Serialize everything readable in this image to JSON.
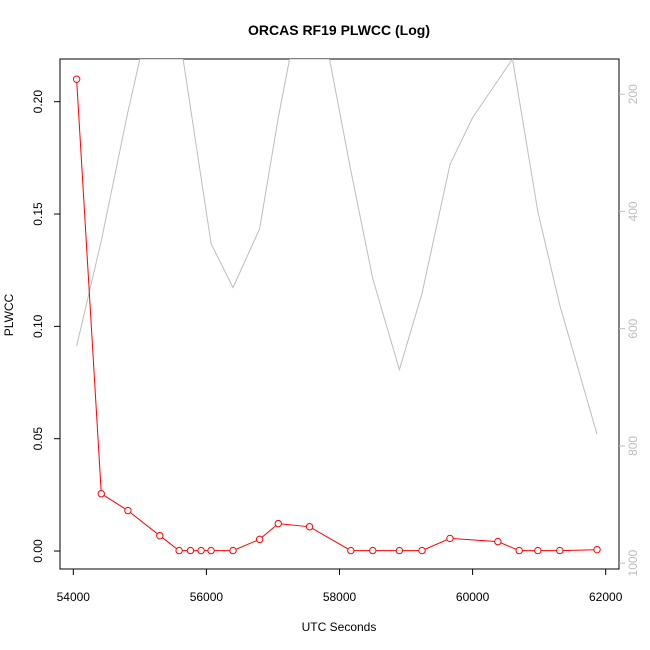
{
  "chart_data": {
    "type": "line",
    "title": "ORCAS RF19 PLWCC (Log)",
    "xlabel": "UTC Seconds",
    "ylabel": "PLWCC",
    "xlim": [
      53800,
      62200
    ],
    "ylim": [
      -0.008,
      0.219
    ],
    "x_ticks": [
      54000,
      56000,
      58000,
      60000,
      62000
    ],
    "y_ticks": [
      0.0,
      0.05,
      0.1,
      0.15,
      0.2
    ],
    "y_tick_labels": [
      "0.00",
      "0.05",
      "0.10",
      "0.15",
      "0.20"
    ],
    "right_axis": {
      "ylim": [
        1010,
        140
      ],
      "reversed": true,
      "ticks": [
        200,
        400,
        600,
        800,
        1000
      ],
      "tick_labels": [
        "200",
        "400",
        "600",
        "800",
        "1000"
      ],
      "color": "#bdbdbd"
    },
    "grid": false,
    "series": [
      {
        "color": "#ff0000",
        "marker": "open-circle",
        "axis": "left",
        "x": [
          54050,
          54420,
          54820,
          55300,
          55590,
          55760,
          55920,
          56070,
          56400,
          56800,
          57080,
          57550,
          58170,
          58500,
          58900,
          59240,
          59660,
          60380,
          60700,
          60980,
          61310,
          61870
        ],
        "y": [
          0.21,
          0.0255,
          0.018,
          0.0068,
          0.0002,
          0.0002,
          0.0002,
          0.0002,
          0.0002,
          0.0052,
          0.0122,
          0.0108,
          0.0002,
          0.0002,
          0.0002,
          0.0002,
          0.0056,
          0.0042,
          0.0002,
          0.0002,
          0.0002,
          0.0006
        ]
      },
      {
        "color": "#bdbdbd",
        "marker": "none",
        "axis": "right",
        "x": [
          54050,
          54420,
          54820,
          55000,
          55650,
          56070,
          56400,
          56800,
          57080,
          57250,
          57850,
          58170,
          58500,
          58900,
          59240,
          59660,
          60000,
          60600,
          60980,
          61310,
          61870
        ],
        "y": [
          630,
          450,
          230,
          140,
          140,
          455,
          530,
          430,
          240,
          140,
          140,
          330,
          515,
          670,
          540,
          320,
          240,
          140,
          400,
          560,
          780
        ]
      }
    ]
  }
}
